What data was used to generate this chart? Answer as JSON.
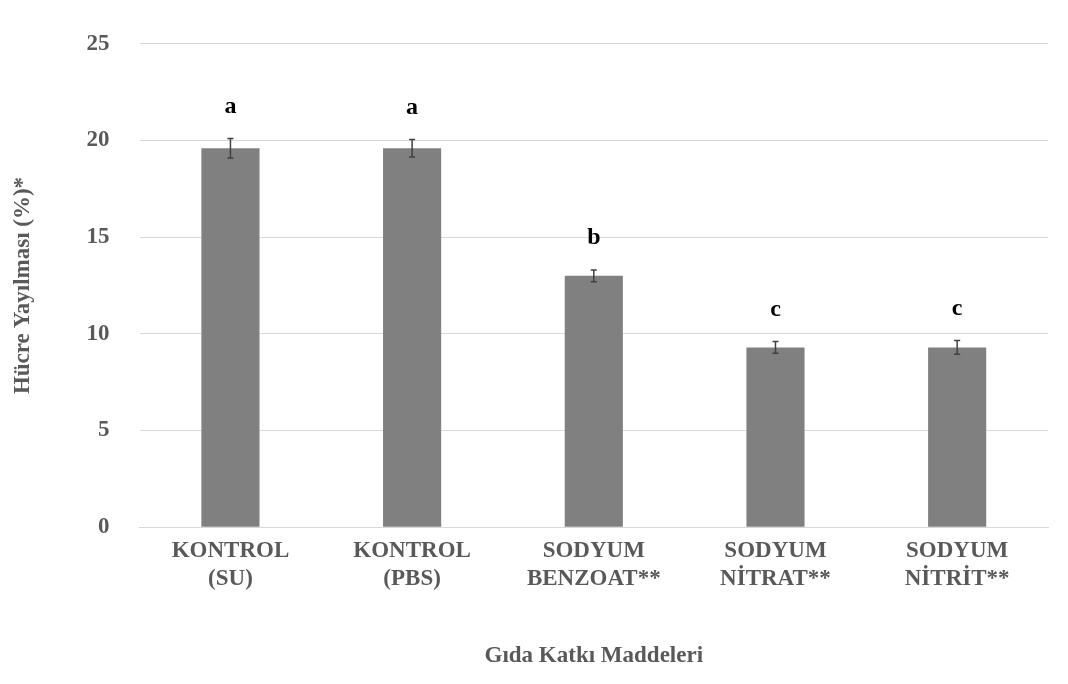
{
  "chart_data": {
    "type": "bar",
    "xlabel": "Gıda Katkı Maddeleri",
    "ylabel": "Hücre Yayılması (%)*",
    "categories": [
      "KONTROL\n(SU)",
      "KONTROL\n(PBS)",
      "SODYUM\nBENZOAT**",
      "SODYUM\nNİTRAT**",
      "SODYUM\nNİTRİT**"
    ],
    "values": [
      19.6,
      19.6,
      13.0,
      9.3,
      9.3
    ],
    "errors": [
      0.5,
      0.45,
      0.3,
      0.3,
      0.35
    ],
    "color": "#808080",
    "ylim": [
      0,
      25
    ],
    "yticks": [
      0,
      5,
      10,
      15,
      20,
      25
    ],
    "grid": "y",
    "legend": false,
    "annotations": [
      "a",
      "a",
      "b",
      "c",
      "c"
    ]
  }
}
